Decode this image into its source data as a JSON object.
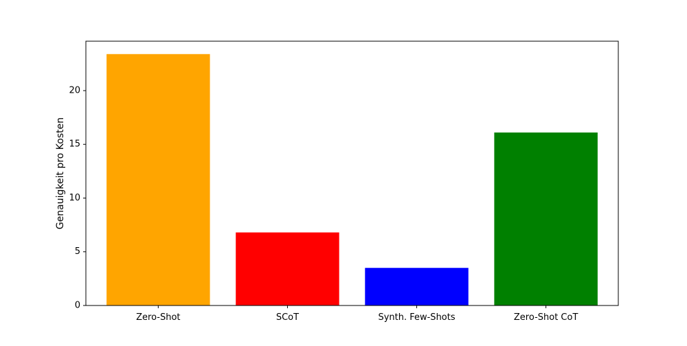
{
  "chart_data": {
    "type": "bar",
    "title": "",
    "xlabel": "",
    "ylabel": "Genauigkeit pro Kosten",
    "categories": [
      "Zero-Shot",
      "SCoT",
      "Synth. Few-Shots",
      "Zero-Shot CoT"
    ],
    "values": [
      23.4,
      6.8,
      3.5,
      16.1
    ],
    "colors": [
      "#ffa500",
      "#ff0000",
      "#0000ff",
      "#008000"
    ],
    "ylim": [
      0,
      24.6
    ],
    "yticks": [
      0,
      5,
      10,
      15,
      20
    ],
    "grid": false,
    "legend": "none"
  }
}
